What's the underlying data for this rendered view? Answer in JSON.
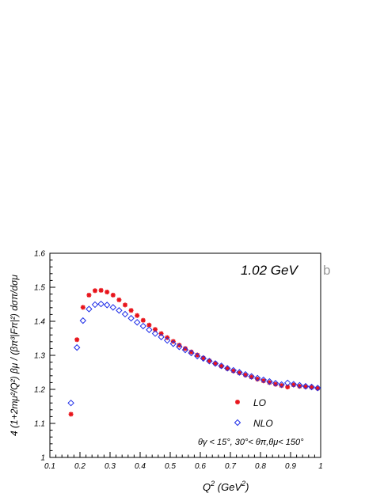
{
  "chart_data": {
    "type": "scatter",
    "energy_label": "1.02 GeV",
    "panel_letter": "b",
    "xlabel": {
      "base": "Q",
      "sup": "2",
      "units_open": " (GeV",
      "units_sup": "2",
      "units_close": ")"
    },
    "ylabel": "4 (1+2mμ²/Q²) βμ / (βπ³|Fπ|²) dσπ/dσμ",
    "cuts_label": "θγ < 15°,  30°< θπ,θμ< 150°",
    "xlim": [
      0.1,
      1.0
    ],
    "ylim": [
      1.0,
      1.6
    ],
    "xticks": [
      "0.1",
      "0.2",
      "0.3",
      "0.4",
      "0.5",
      "0.6",
      "0.7",
      "0.8",
      "0.9",
      "1"
    ],
    "yticks": [
      "1",
      "1.1",
      "1.2",
      "1.3",
      "1.4",
      "1.5",
      "1.6"
    ],
    "legend": [
      "LO",
      "NLO"
    ],
    "series": [
      {
        "name": "LO",
        "marker": "filled-star",
        "color": "#e8141b",
        "x": [
          0.17,
          0.19,
          0.21,
          0.23,
          0.25,
          0.27,
          0.29,
          0.31,
          0.33,
          0.35,
          0.37,
          0.39,
          0.41,
          0.43,
          0.45,
          0.47,
          0.49,
          0.51,
          0.53,
          0.55,
          0.57,
          0.59,
          0.61,
          0.63,
          0.65,
          0.67,
          0.69,
          0.71,
          0.73,
          0.75,
          0.77,
          0.79,
          0.81,
          0.83,
          0.85,
          0.87,
          0.89,
          0.91,
          0.93,
          0.95,
          0.97,
          0.99
        ],
        "y": [
          1.127,
          1.346,
          1.441,
          1.477,
          1.49,
          1.491,
          1.486,
          1.477,
          1.463,
          1.448,
          1.432,
          1.417,
          1.403,
          1.389,
          1.376,
          1.364,
          1.352,
          1.341,
          1.33,
          1.32,
          1.31,
          1.301,
          1.292,
          1.284,
          1.276,
          1.268,
          1.261,
          1.254,
          1.248,
          1.242,
          1.236,
          1.23,
          1.225,
          1.22,
          1.215,
          1.211,
          1.207,
          1.213,
          1.209,
          1.208,
          1.206,
          1.203
        ]
      },
      {
        "name": "NLO",
        "marker": "open-diamond",
        "color": "#1f2ee8",
        "x": [
          0.17,
          0.19,
          0.21,
          0.23,
          0.25,
          0.27,
          0.29,
          0.31,
          0.33,
          0.35,
          0.37,
          0.39,
          0.41,
          0.43,
          0.45,
          0.47,
          0.49,
          0.51,
          0.53,
          0.55,
          0.57,
          0.59,
          0.61,
          0.63,
          0.65,
          0.67,
          0.69,
          0.71,
          0.73,
          0.75,
          0.77,
          0.79,
          0.81,
          0.83,
          0.85,
          0.87,
          0.89,
          0.91,
          0.93,
          0.95,
          0.97,
          0.99
        ],
        "y": [
          1.16,
          1.323,
          1.402,
          1.436,
          1.449,
          1.451,
          1.448,
          1.441,
          1.432,
          1.421,
          1.409,
          1.397,
          1.386,
          1.375,
          1.364,
          1.354,
          1.344,
          1.334,
          1.325,
          1.316,
          1.307,
          1.298,
          1.291,
          1.283,
          1.276,
          1.269,
          1.262,
          1.256,
          1.25,
          1.244,
          1.238,
          1.233,
          1.228,
          1.223,
          1.218,
          1.214,
          1.219,
          1.215,
          1.212,
          1.209,
          1.207,
          1.204
        ]
      }
    ]
  }
}
